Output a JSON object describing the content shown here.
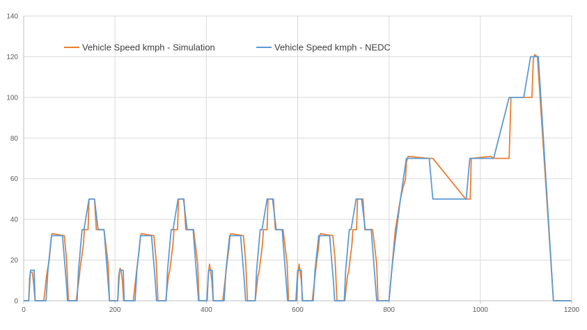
{
  "chart_data": {
    "type": "line",
    "title": "",
    "xlabel": "",
    "ylabel": "",
    "xlim": [
      0,
      1200
    ],
    "ylim": [
      0,
      140
    ],
    "x_ticks": [
      0,
      200,
      400,
      600,
      800,
      1000,
      1200
    ],
    "y_ticks": [
      0,
      20,
      40,
      60,
      80,
      100,
      120,
      140
    ],
    "grid": true,
    "legend_position": "top-left",
    "series": [
      {
        "name": "Vehicle Speed kmph - Simulation",
        "color": "#ed7d31",
        "x": [
          0,
          11,
          13,
          15,
          19,
          22,
          25,
          28,
          44,
          50,
          52,
          56,
          61,
          62,
          89,
          94,
          98,
          115,
          122,
          123,
          131,
          133,
          141,
          143,
          155,
          159,
          163,
          176,
          185,
          188,
          195,
          206,
          208,
          211,
          213,
          216,
          219,
          240,
          246,
          250,
          253,
          256,
          258,
          285,
          290,
          294,
          311,
          317,
          320,
          327,
          329,
          337,
          339,
          351,
          355,
          359,
          372,
          381,
          384,
          391,
          402,
          404,
          407,
          409,
          412,
          415,
          436,
          442,
          446,
          449,
          452,
          454,
          481,
          486,
          490,
          507,
          513,
          516,
          523,
          525,
          533,
          535,
          547,
          551,
          555,
          568,
          577,
          580,
          587,
          598,
          600,
          603,
          605,
          608,
          611,
          632,
          638,
          642,
          645,
          648,
          650,
          677,
          682,
          686,
          703,
          709,
          712,
          719,
          721,
          729,
          731,
          743,
          747,
          751,
          764,
          773,
          776,
          783,
          800,
          806,
          811,
          814,
          825,
          830,
          836,
          838,
          842,
          888,
          896,
          968,
          978,
          980,
          1023,
          1029,
          1063,
          1067,
          1095,
          1113,
          1116,
          1119,
          1125,
          1160,
          1180,
          1200
        ],
        "values": [
          0,
          0,
          11,
          14,
          14,
          8,
          0,
          0,
          0,
          12,
          15,
          20,
          32,
          33,
          32,
          20,
          0,
          0,
          12,
          15,
          28,
          35,
          35,
          50,
          50,
          35,
          35,
          35,
          18,
          0,
          0,
          0,
          12,
          16,
          15,
          10,
          0,
          0,
          12,
          20,
          25,
          32,
          33,
          32,
          20,
          0,
          0,
          12,
          15,
          28,
          35,
          35,
          50,
          50,
          35,
          35,
          35,
          18,
          0,
          0,
          0,
          12,
          18,
          15,
          10,
          0,
          0,
          12,
          20,
          25,
          32,
          33,
          32,
          20,
          0,
          0,
          12,
          15,
          28,
          35,
          35,
          50,
          50,
          35,
          35,
          35,
          18,
          0,
          0,
          0,
          12,
          18,
          15,
          10,
          0,
          0,
          12,
          20,
          25,
          32,
          33,
          32,
          20,
          0,
          0,
          12,
          15,
          28,
          35,
          35,
          50,
          50,
          35,
          35,
          35,
          18,
          0,
          0,
          0,
          15,
          28,
          35,
          50,
          55,
          60,
          68,
          71,
          70,
          70,
          50,
          50,
          70,
          71,
          70,
          70,
          100,
          100,
          100,
          119,
          121,
          120,
          0,
          0,
          0
        ]
      },
      {
        "name": "Vehicle Speed kmph - NEDC",
        "color": "#5b9bd5",
        "x": [
          0,
          11,
          15,
          23,
          25,
          28,
          49,
          53,
          61,
          85,
          93,
          96,
          117,
          120,
          128,
          132,
          143,
          155,
          163,
          176,
          188,
          195,
          206,
          210,
          218,
          220,
          223,
          244,
          248,
          256,
          280,
          288,
          291,
          312,
          315,
          323,
          327,
          338,
          350,
          358,
          371,
          383,
          390,
          401,
          405,
          413,
          415,
          418,
          439,
          443,
          451,
          475,
          483,
          486,
          507,
          510,
          518,
          522,
          533,
          545,
          553,
          566,
          578,
          585,
          596,
          600,
          608,
          610,
          613,
          634,
          638,
          646,
          670,
          678,
          681,
          702,
          705,
          713,
          717,
          728,
          740,
          748,
          761,
          773,
          780,
          800,
          806,
          811,
          825,
          838,
          888,
          896,
          969,
          977,
          1023,
          1029,
          1063,
          1067,
          1095,
          1110,
          1120,
          1127,
          1160,
          1180,
          1200
        ],
        "values": [
          0,
          0,
          15,
          15,
          0,
          0,
          0,
          15,
          32,
          32,
          10,
          0,
          0,
          15,
          35,
          35,
          50,
          50,
          35,
          35,
          0,
          0,
          0,
          15,
          15,
          0,
          0,
          0,
          15,
          32,
          32,
          10,
          0,
          0,
          15,
          35,
          35,
          50,
          50,
          35,
          35,
          0,
          0,
          0,
          15,
          15,
          0,
          0,
          0,
          15,
          32,
          32,
          10,
          0,
          0,
          15,
          35,
          35,
          50,
          50,
          35,
          35,
          0,
          0,
          0,
          15,
          15,
          0,
          0,
          0,
          15,
          32,
          32,
          10,
          0,
          0,
          15,
          35,
          35,
          50,
          50,
          35,
          35,
          0,
          0,
          0,
          15,
          25,
          50,
          70,
          70,
          50,
          50,
          70,
          70,
          70,
          100,
          100,
          100,
          120,
          120,
          120,
          0,
          0,
          0
        ]
      }
    ]
  }
}
